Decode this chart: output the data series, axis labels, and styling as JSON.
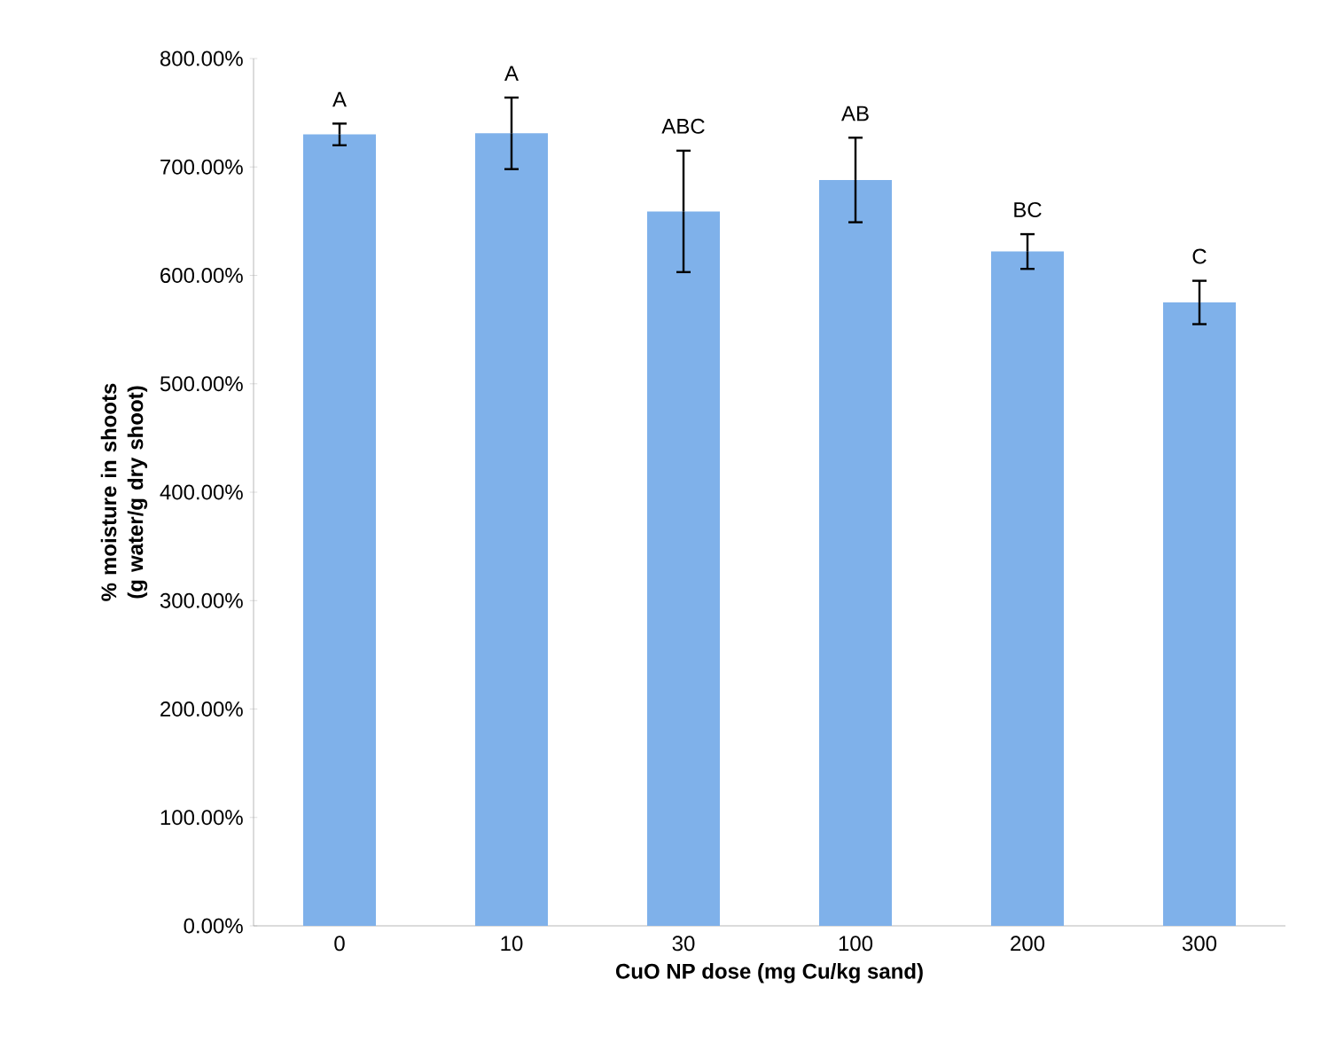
{
  "chart_data": {
    "type": "bar",
    "xlabel": "CuO NP dose (mg Cu/kg sand)",
    "ylabel": "% moisture in shoots\n(g water/g dry shoot)",
    "categories": [
      "0",
      "10",
      "30",
      "100",
      "200",
      "300"
    ],
    "values": [
      730,
      731,
      659,
      688,
      622,
      575
    ],
    "errors": [
      10,
      33,
      56,
      39,
      16,
      20
    ],
    "color": "#7fb1ea",
    "ylim": [
      0,
      800
    ],
    "yticks": [
      {
        "value": 0,
        "label": "0.00%"
      },
      {
        "value": 100,
        "label": "100.00%"
      },
      {
        "value": 200,
        "label": "200.00%"
      },
      {
        "value": 300,
        "label": "300.00%"
      },
      {
        "value": 400,
        "label": "400.00%"
      },
      {
        "value": 500,
        "label": "500.00%"
      },
      {
        "value": 600,
        "label": "600.00%"
      },
      {
        "value": 700,
        "label": "700.00%"
      },
      {
        "value": 800,
        "label": "800.00%"
      }
    ],
    "annotations": [
      "A",
      "A",
      "ABC",
      "AB",
      "BC",
      "C"
    ],
    "grid": false
  }
}
